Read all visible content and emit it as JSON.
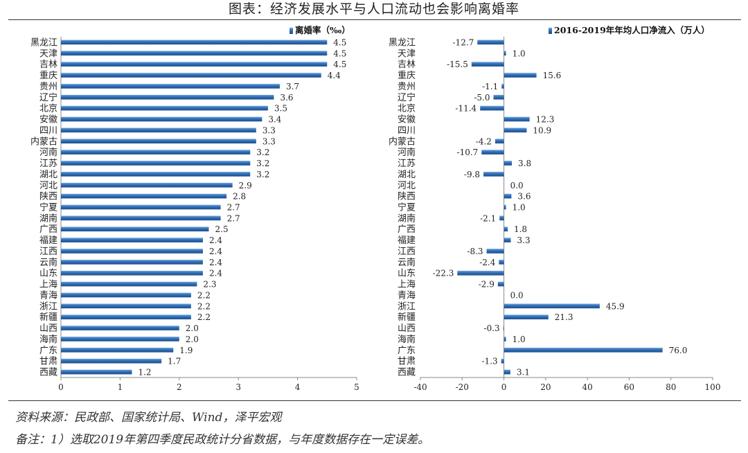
{
  "title": "图表：经济发展水平与人口流动也会影响离婚率",
  "chart_data": [
    {
      "type": "bar",
      "orientation": "horizontal",
      "series": [
        {
          "name": "离婚率（‰）",
          "values": [
            4.5,
            4.5,
            4.5,
            4.4,
            3.7,
            3.6,
            3.5,
            3.4,
            3.3,
            3.3,
            3.2,
            3.2,
            3.2,
            2.9,
            2.8,
            2.7,
            2.7,
            2.5,
            2.4,
            2.4,
            2.4,
            2.4,
            2.3,
            2.2,
            2.2,
            2.2,
            2.0,
            2.0,
            1.9,
            1.7,
            1.2
          ]
        }
      ],
      "categories": [
        "黑龙江",
        "天津",
        "吉林",
        "重庆",
        "贵州",
        "辽宁",
        "北京",
        "安徽",
        "四川",
        "内蒙古",
        "河南",
        "江苏",
        "湖北",
        "河北",
        "陕西",
        "宁夏",
        "湖南",
        "广西",
        "福建",
        "江西",
        "云南",
        "山东",
        "上海",
        "青海",
        "浙江",
        "新疆",
        "山西",
        "海南",
        "广东",
        "甘肃",
        "西藏"
      ],
      "value_labels": [
        "4.5",
        "4.5",
        "4.5",
        "4.4",
        "3.7",
        "3.6",
        "3.5",
        "3.4",
        "3.3",
        "3.3",
        "3.2",
        "3.2",
        "3.2",
        "2.9",
        "2.8",
        "2.7",
        "2.7",
        "2.5",
        "2.4",
        "2.4",
        "2.4",
        "2.4",
        "2.3",
        "2.2",
        "2.2",
        "2.2",
        "2.0",
        "2.0",
        "1.9",
        "1.7",
        "1.2"
      ],
      "xlim": [
        0,
        5
      ],
      "x_ticks": [
        "0",
        "1",
        "2",
        "3",
        "4",
        "5"
      ],
      "legend_position": "top-right",
      "bar_color": "#2e6db4"
    },
    {
      "type": "bar",
      "orientation": "horizontal",
      "series": [
        {
          "name": "2016-2019年年均人口净流入（万人）",
          "values": [
            -12.7,
            1.0,
            -15.5,
            15.6,
            -1.1,
            -5.0,
            -11.4,
            12.3,
            10.9,
            -4.2,
            -10.7,
            3.8,
            -9.8,
            0.0,
            3.6,
            1.0,
            -2.1,
            1.8,
            3.3,
            -8.3,
            -2.4,
            -22.3,
            -2.9,
            0.0,
            45.9,
            21.3,
            -0.3,
            1.0,
            76.0,
            -1.3,
            3.1
          ]
        }
      ],
      "categories": [
        "黑龙江",
        "天津",
        "吉林",
        "重庆",
        "贵州",
        "辽宁",
        "北京",
        "安徽",
        "四川",
        "内蒙古",
        "河南",
        "江苏",
        "湖北",
        "河北",
        "陕西",
        "宁夏",
        "湖南",
        "广西",
        "福建",
        "江西",
        "云南",
        "山东",
        "上海",
        "青海",
        "浙江",
        "新疆",
        "山西",
        "海南",
        "广东",
        "甘肃",
        "西藏"
      ],
      "value_labels": [
        "-12.7",
        "1.0",
        "-15.5",
        "15.6",
        "-1.1",
        "-5.0",
        "-11.4",
        "12.3",
        "10.9",
        "-4.2",
        "-10.7",
        "3.8",
        "-9.8",
        "0.0",
        "3.6",
        "1.0",
        "-2.1",
        "1.8",
        "3.3",
        "-8.3",
        "-2.4",
        "-22.3",
        "-2.9",
        "0.0",
        "45.9",
        "21.3",
        "-0.3",
        "1.0",
        "76.0",
        "-1.3",
        "3.1"
      ],
      "xlim": [
        -40,
        100
      ],
      "x_ticks": [
        "-40",
        "-20",
        "0",
        "20",
        "40",
        "60",
        "80",
        "100"
      ],
      "legend_position": "top-right",
      "bar_color": "#2e6db4"
    }
  ],
  "footer": {
    "source": "资料来源：民政部、国家统计局、Wind，泽平宏观",
    "remark": "备注：1）选取2019年第四季度民政统计分省数据，与年度数据存在一定误差。"
  }
}
